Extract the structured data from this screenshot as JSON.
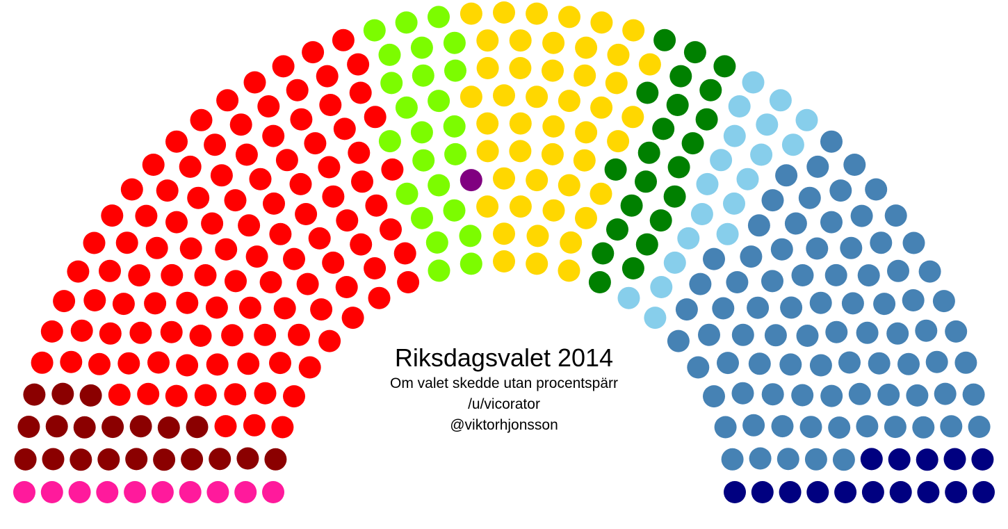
{
  "chart_data": {
    "type": "parliament",
    "title": "Riksdagsvalet 2014",
    "subtitle": "Om valet skedde utan procentspärr",
    "annotations": [
      "/u/vicorator",
      "@viktorhjonsson"
    ],
    "series": [
      {
        "color": "#ff1a9c",
        "values": [
          10
        ]
      },
      {
        "color": "#8b0000",
        "values": [
          20
        ]
      },
      {
        "color": "#ff0000",
        "values": [
          110
        ]
      },
      {
        "color": "#7cfc00",
        "values": [
          24
        ]
      },
      {
        "color": "#800080",
        "values": [
          1
        ]
      },
      {
        "color": "#ffd700",
        "values": [
          46
        ]
      },
      {
        "color": "#008000",
        "values": [
          22
        ]
      },
      {
        "color": "#87ceeb",
        "values": [
          19
        ]
      },
      {
        "color": "#4682b4",
        "values": [
          82
        ]
      },
      {
        "color": "#000080",
        "values": [
          15
        ]
      }
    ]
  }
}
